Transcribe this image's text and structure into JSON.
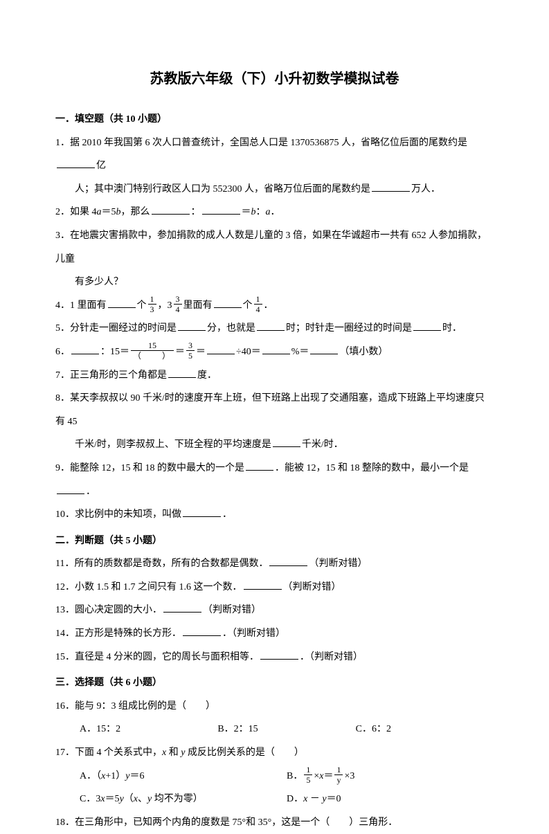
{
  "title": "苏教版六年级（下）小升初数学模拟试卷",
  "sections": {
    "s1": "一．填空题（共 10 小题）",
    "s2": "二．判断题（共 5 小题）",
    "s3": "三．选择题（共 6 小题）"
  },
  "q1a": "1．据 2010 年我国第 6 次人口普查统计，全国总人口是 1370536875 人，省略亿位后面的尾数约是",
  "q1b": "亿",
  "q1c": "人；其中澳门特别行政区人口为 552300 人，省略万位后面的尾数约是",
  "q1d": "万人．",
  "q2a": "2．如果 4",
  "q2b": "＝5",
  "q2c": "，那么",
  "q2d": "：",
  "q2e": "＝",
  "q2f": "：",
  "q2g": "．",
  "q3a": "3．在地震灾害捐款中，参加捐款的成人人数是儿童的 3 倍，如果在华诚超市一共有 652 人参加捐款，儿童",
  "q3b": "有多少人？",
  "q4a": "4．1 里面有",
  "q4b": "个",
  "q4c": "，3",
  "q4d": "里面有",
  "q4e": "个",
  "q4f": "．",
  "q5a": "5．分针走一圈经过的时间是",
  "q5b": "分，也就是",
  "q5c": "时；时针走一圈经过的时间是",
  "q5d": "时．",
  "q6a": "6．",
  "q6b": "：15＝",
  "q6c": "＝",
  "q6d": "＝",
  "q6e": "÷40＝",
  "q6f": "%＝",
  "q6g": "（填小数）",
  "q7a": "7．正三角形的三个角都是",
  "q7b": "度．",
  "q8a": "8．某天李叔叔以 90 千米/时的速度开车上班，但下班路上出现了交通阻塞，造成下班路上平均速度只有 45",
  "q8b": "千米/时，则李叔叔上、下班全程的平均速度是",
  "q8c": "千米/时．",
  "q9a": "9．能整除 12，15 和 18 的数中最大的一个是",
  "q9b": "．能被 12，15 和 18 整除的数中，最小一个是",
  "q9c": "．",
  "q10a": "10．求比例中的未知项，叫做",
  "q10b": "．",
  "q11a": "11．所有的质数都是奇数，所有的合数都是偶数．",
  "q11b": "（判断对错）",
  "q12a": "12．小数 1.5 和 1.7 之间只有 1.6 这一个数．",
  "q12b": "（判断对错）",
  "q13a": "13．圆心决定圆的大小．",
  "q13b": "（判断对错）",
  "q14a": "14．正方形是特殊的长方形．",
  "q14b": "．（判断对错）",
  "q15a": "15．直径是 4 分米的圆，它的周长与面积相等．",
  "q15b": "．（判断对错）",
  "q16": "16．能与 9：3 组成比例的是（　　）",
  "q16A": "A．15：2",
  "q16B": "B．2：15",
  "q16C": "C．6：2",
  "q17a": "17．下面 4 个关系式中，",
  "q17b": " 和 ",
  "q17c": " 成反比例关系的是（　　）",
  "q17A1": "A．（",
  "q17A2": "+1）",
  "q17A3": "＝6",
  "q17B1": "B．",
  "q17B2": "×",
  "q17B3": "＝",
  "q17B4": "×3",
  "q17C1": "C．3",
  "q17C2": "＝5",
  "q17C3": "（",
  "q17C4": "、",
  "q17C5": " 均不为零）",
  "q17D1": "D．",
  "q17D2": "－",
  "q17D3": "＝0",
  "q18": "18．在三角形中，已知两个内角的度数是 75°和 35°，这是一个（　　）三角形．",
  "vars": {
    "a": "a",
    "b": "b",
    "x": "x",
    "y": "y"
  },
  "fracs": {
    "f13n": "1",
    "f13d": "3",
    "f34n": "3",
    "f34d": "4",
    "f14n": "1",
    "f14d": "4",
    "f15n": "15",
    "f15d": "（　　）",
    "f35n": "3",
    "f35d": "5",
    "f15bn": "1",
    "f15bd": "5",
    "f1yn": "1",
    "f1yd": "y"
  }
}
